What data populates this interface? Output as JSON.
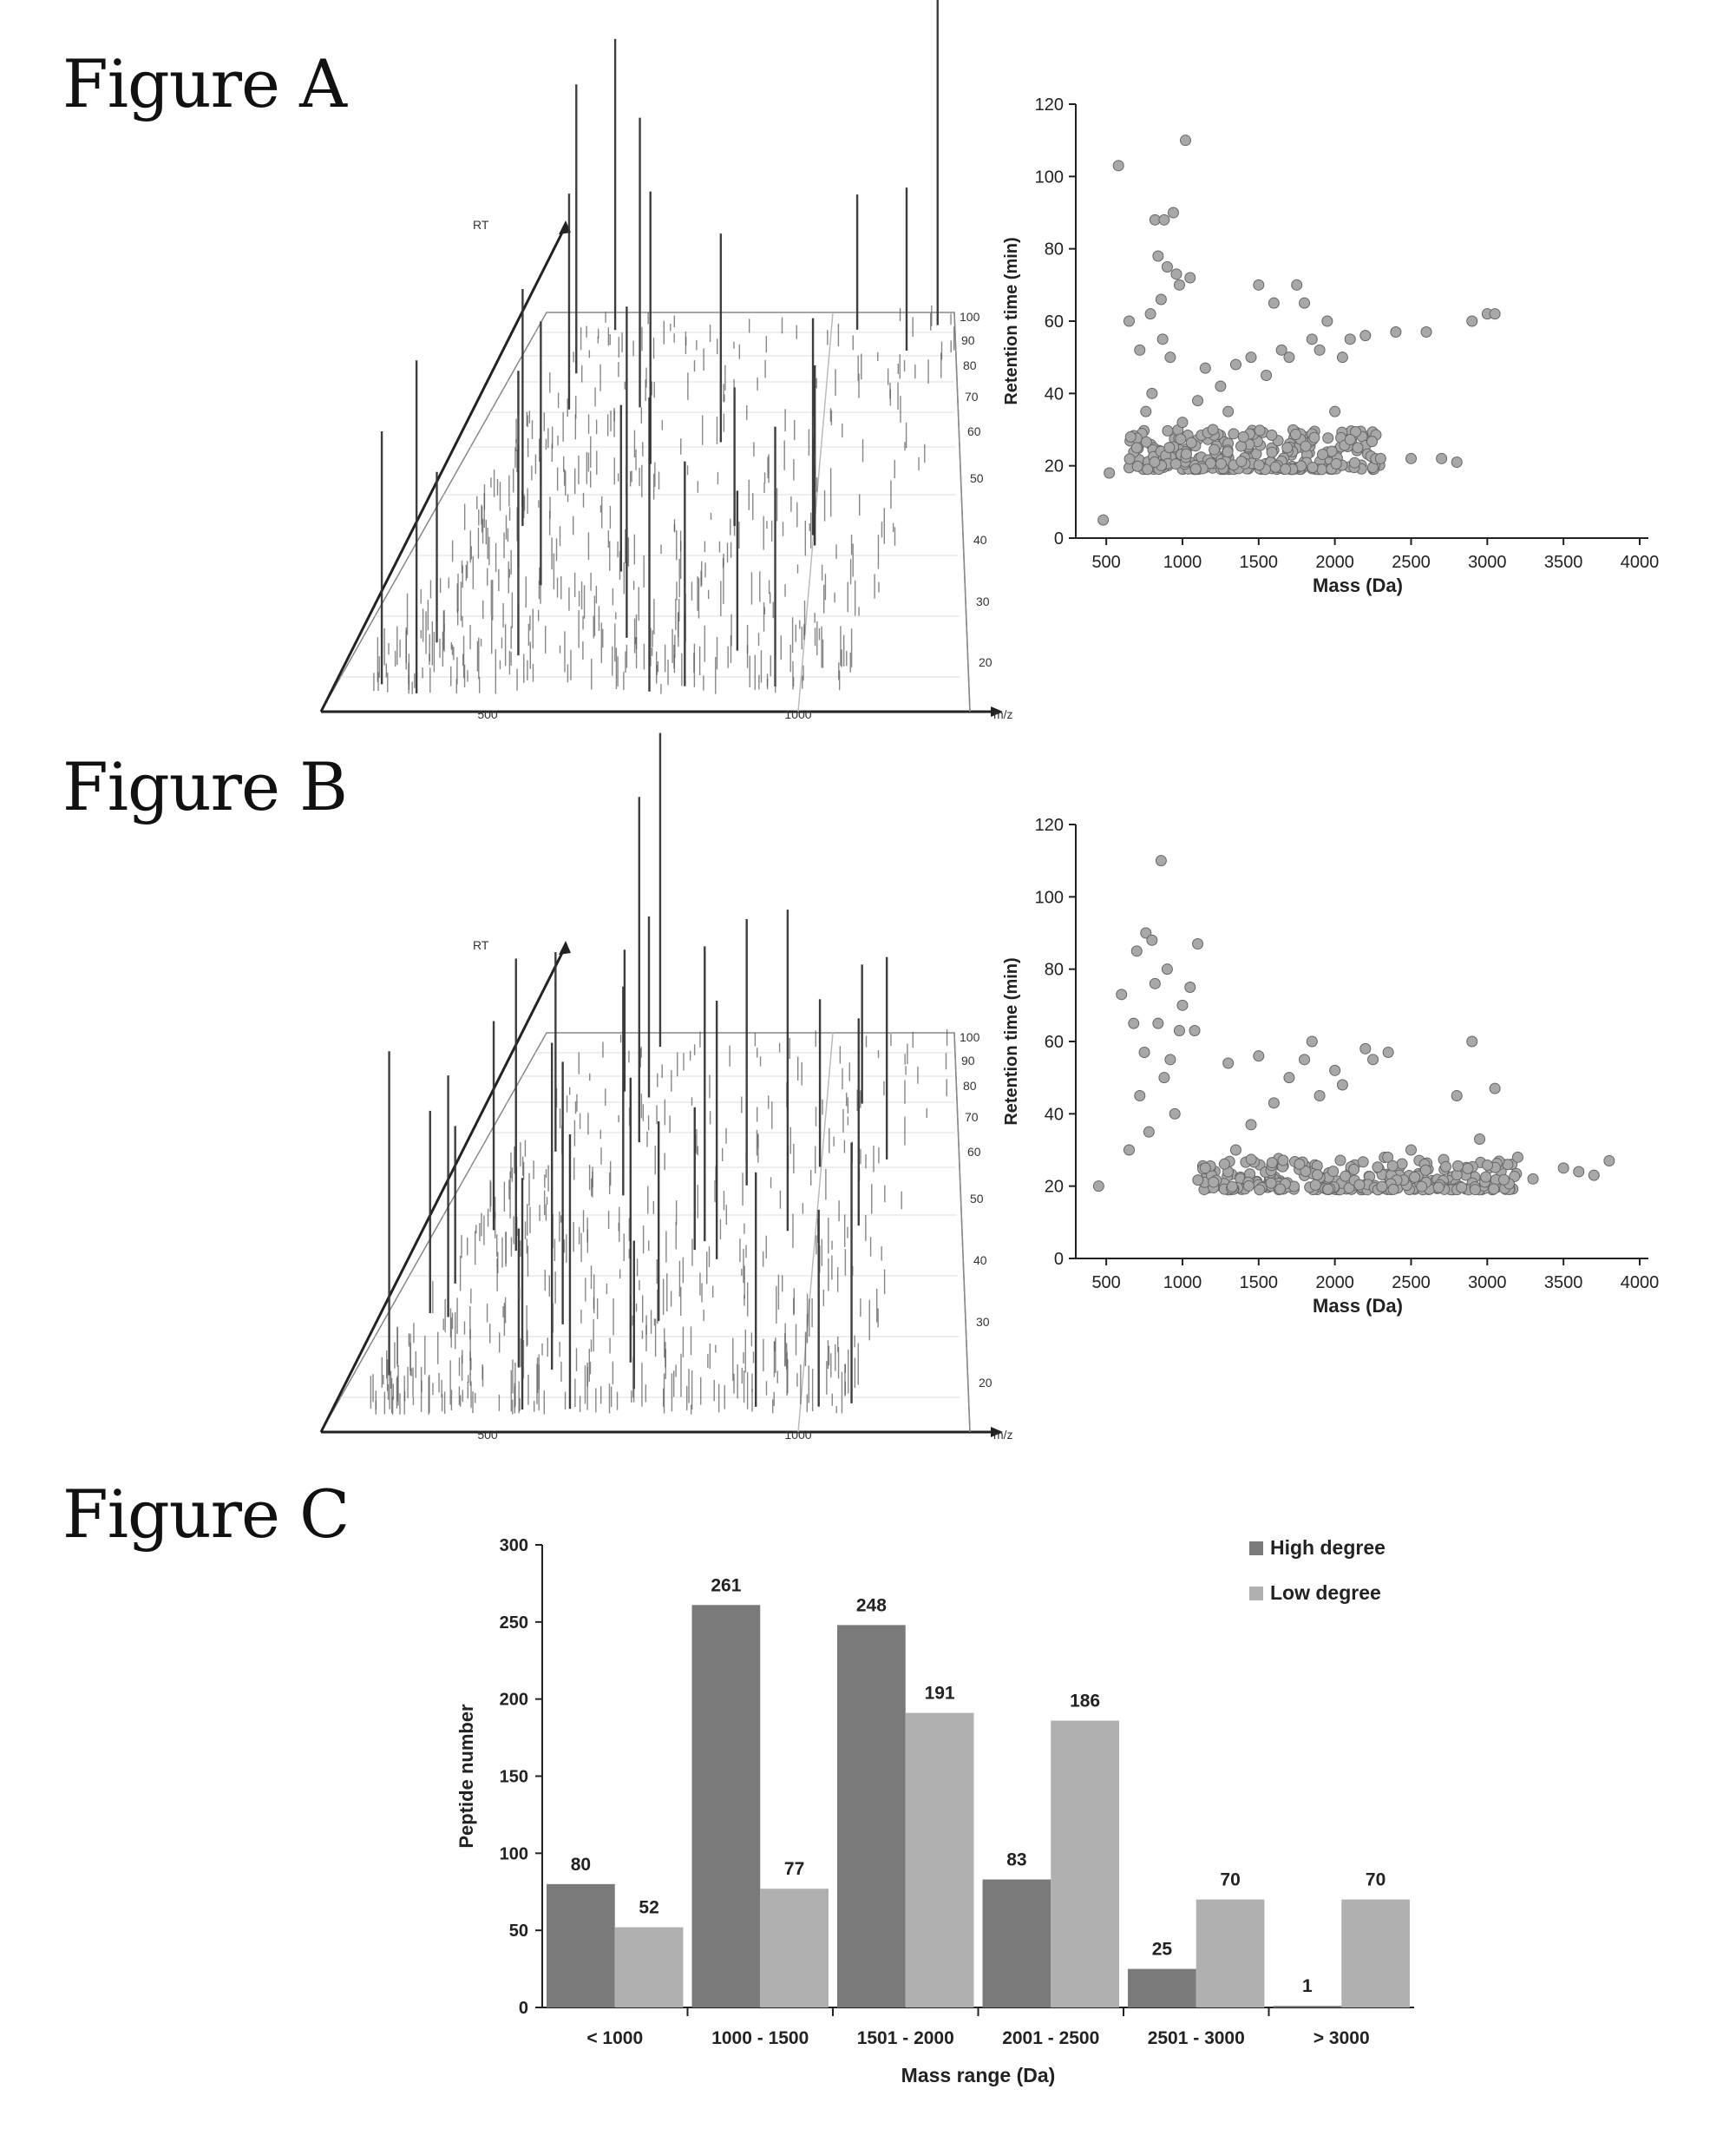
{
  "figures": {
    "a_title": "Figure A",
    "b_title": "Figure B",
    "c_title": "Figure C"
  },
  "colors": {
    "high": "#7a7a7a",
    "low": "#b0b0b0",
    "point": "#a8a8a8",
    "axis": "#222222",
    "spike": "#555555"
  },
  "spectrum_3d": {
    "z_label": "RT",
    "x_label": "m/z",
    "x_ticks": [
      "500",
      "1000"
    ],
    "rt_ticks": [
      "20",
      "30",
      "40",
      "50",
      "60",
      "70",
      "80",
      "90",
      "100"
    ]
  },
  "chart_data": [
    {
      "id": "A",
      "type": "scatter",
      "title": "",
      "xlabel": "Mass (Da)",
      "ylabel": "Retention time (min)",
      "xlim": [
        300,
        4000
      ],
      "ylim": [
        0,
        120
      ],
      "x_ticks": [
        500,
        1000,
        1500,
        2000,
        2500,
        3000,
        3500,
        4000
      ],
      "y_ticks": [
        0,
        20,
        40,
        60,
        80,
        100,
        120
      ],
      "points": [
        [
          480,
          5
        ],
        [
          520,
          18
        ],
        [
          580,
          103
        ],
        [
          650,
          60
        ],
        [
          660,
          28
        ],
        [
          700,
          25
        ],
        [
          720,
          52
        ],
        [
          760,
          35
        ],
        [
          790,
          62
        ],
        [
          800,
          40
        ],
        [
          820,
          88
        ],
        [
          840,
          78
        ],
        [
          860,
          66
        ],
        [
          870,
          55
        ],
        [
          880,
          88
        ],
        [
          900,
          75
        ],
        [
          920,
          50
        ],
        [
          940,
          90
        ],
        [
          960,
          73
        ],
        [
          980,
          70
        ],
        [
          1000,
          32
        ],
        [
          1020,
          110
        ],
        [
          1050,
          72
        ],
        [
          1100,
          38
        ],
        [
          1150,
          47
        ],
        [
          1200,
          30
        ],
        [
          1250,
          42
        ],
        [
          1300,
          35
        ],
        [
          1350,
          48
        ],
        [
          1400,
          28
        ],
        [
          1450,
          50
        ],
        [
          1500,
          70
        ],
        [
          1550,
          45
        ],
        [
          1600,
          65
        ],
        [
          1650,
          52
        ],
        [
          1700,
          50
        ],
        [
          1750,
          70
        ],
        [
          1800,
          65
        ],
        [
          1850,
          55
        ],
        [
          1900,
          52
        ],
        [
          1950,
          60
        ],
        [
          2000,
          35
        ],
        [
          2050,
          50
        ],
        [
          2100,
          55
        ],
        [
          2150,
          25
        ],
        [
          2200,
          56
        ],
        [
          2300,
          22
        ],
        [
          2400,
          57
        ],
        [
          2500,
          22
        ],
        [
          2600,
          57
        ],
        [
          2700,
          22
        ],
        [
          2800,
          21
        ],
        [
          2900,
          60
        ],
        [
          3000,
          62
        ],
        [
          3050,
          62
        ]
      ],
      "dense_band": {
        "x_range": [
          650,
          2300
        ],
        "rt_range": [
          19,
          30
        ],
        "count": 260
      }
    },
    {
      "id": "B",
      "type": "scatter",
      "title": "",
      "xlabel": "Mass (Da)",
      "ylabel": "Retention time (min)",
      "xlim": [
        300,
        4000
      ],
      "ylim": [
        0,
        120
      ],
      "x_ticks": [
        500,
        1000,
        1500,
        2000,
        2500,
        3000,
        3500,
        4000
      ],
      "y_ticks": [
        0,
        20,
        40,
        60,
        80,
        100,
        120
      ],
      "points": [
        [
          450,
          20
        ],
        [
          600,
          73
        ],
        [
          650,
          30
        ],
        [
          680,
          65
        ],
        [
          700,
          85
        ],
        [
          720,
          45
        ],
        [
          750,
          57
        ],
        [
          760,
          90
        ],
        [
          780,
          35
        ],
        [
          800,
          88
        ],
        [
          820,
          76
        ],
        [
          840,
          65
        ],
        [
          860,
          110
        ],
        [
          880,
          50
        ],
        [
          900,
          80
        ],
        [
          920,
          55
        ],
        [
          950,
          40
        ],
        [
          980,
          63
        ],
        [
          1000,
          70
        ],
        [
          1050,
          75
        ],
        [
          1080,
          63
        ],
        [
          1100,
          87
        ],
        [
          1150,
          25
        ],
        [
          1300,
          54
        ],
        [
          1350,
          30
        ],
        [
          1450,
          37
        ],
        [
          1500,
          56
        ],
        [
          1600,
          43
        ],
        [
          1700,
          50
        ],
        [
          1800,
          55
        ],
        [
          1850,
          60
        ],
        [
          1900,
          45
        ],
        [
          2000,
          52
        ],
        [
          2050,
          48
        ],
        [
          2200,
          58
        ],
        [
          2250,
          55
        ],
        [
          2350,
          57
        ],
        [
          2500,
          30
        ],
        [
          2800,
          45
        ],
        [
          2900,
          60
        ],
        [
          2950,
          33
        ],
        [
          3050,
          47
        ],
        [
          3200,
          28
        ],
        [
          3300,
          22
        ],
        [
          3500,
          25
        ],
        [
          3600,
          24
        ],
        [
          3700,
          23
        ],
        [
          3800,
          27
        ]
      ],
      "dense_band": {
        "x_range": [
          1100,
          3200
        ],
        "rt_range": [
          19,
          28
        ],
        "count": 300
      }
    },
    {
      "id": "C",
      "type": "bar",
      "title": "",
      "xlabel": "Mass range (Da)",
      "ylabel": "Peptide number",
      "categories": [
        "< 1000",
        "1000 - 1500",
        "1501 - 2000",
        "2001 - 2500",
        "2501 - 3000",
        "> 3000"
      ],
      "series": [
        {
          "name": "High degree",
          "values": [
            80,
            261,
            248,
            83,
            25,
            1
          ]
        },
        {
          "name": "Low degree",
          "values": [
            52,
            77,
            191,
            186,
            70,
            70
          ]
        }
      ],
      "ylim": [
        0,
        300
      ],
      "y_ticks": [
        0,
        50,
        100,
        150,
        200,
        250,
        300
      ],
      "legend": "top-right"
    }
  ]
}
